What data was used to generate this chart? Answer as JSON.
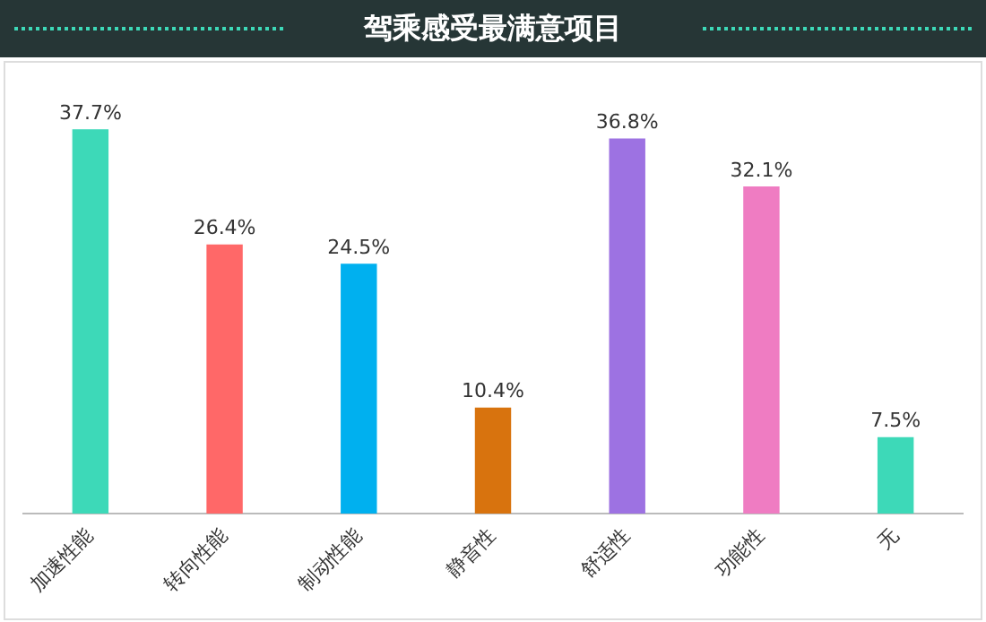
{
  "chart_data": {
    "type": "bar",
    "title": "驾乘感受最满意项目",
    "categories": [
      "加速性能",
      "转向性能",
      "制动性能",
      "静音性",
      "舒适性",
      "功能性",
      "无"
    ],
    "values": [
      37.7,
      26.4,
      24.5,
      10.4,
      36.8,
      32.1,
      7.5
    ],
    "colors": [
      "#3dd9b8",
      "#ff6868",
      "#00b0ef",
      "#d8730e",
      "#9d72e2",
      "#ef7cc2",
      "#3dd9b8"
    ],
    "value_labels": [
      "37.7%",
      "26.4%",
      "24.5%",
      "10.4%",
      "36.8%",
      "32.1%",
      "7.5%"
    ],
    "grid": false,
    "legend": false
  }
}
